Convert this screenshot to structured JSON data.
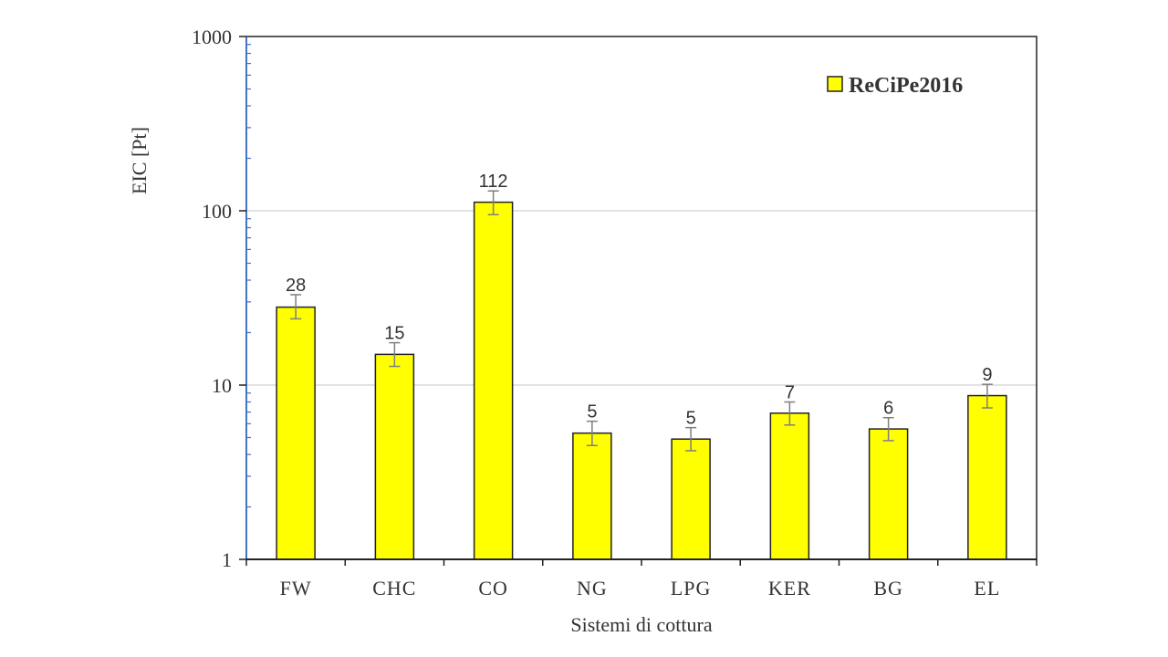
{
  "chart_data": {
    "type": "bar",
    "y_scale": "log",
    "ylim": [
      1,
      1000
    ],
    "y_ticks": [
      "1",
      "10",
      "100",
      "1000"
    ],
    "ylabel": "EIC [Pt]",
    "xlabel": "Sistemi di cottura",
    "categories": [
      "FW",
      "CHC",
      "CO",
      "NG",
      "LPG",
      "KER",
      "BG",
      "EL"
    ],
    "series": [
      {
        "name": "ReCiPe2016",
        "color": "#ffff00",
        "values": [
          28,
          15,
          112,
          5.3,
          4.9,
          6.9,
          5.6,
          8.7
        ],
        "data_labels": [
          "28",
          "15",
          "112",
          "5",
          "5",
          "7",
          "6",
          "9"
        ],
        "error_low": [
          24,
          12.8,
          95,
          4.5,
          4.2,
          5.9,
          4.8,
          7.4
        ],
        "error_high": [
          33,
          17.5,
          130,
          6.2,
          5.7,
          8.0,
          6.5,
          10.1
        ]
      }
    ],
    "grid": "horizontal major",
    "legend_position": "top-right"
  }
}
